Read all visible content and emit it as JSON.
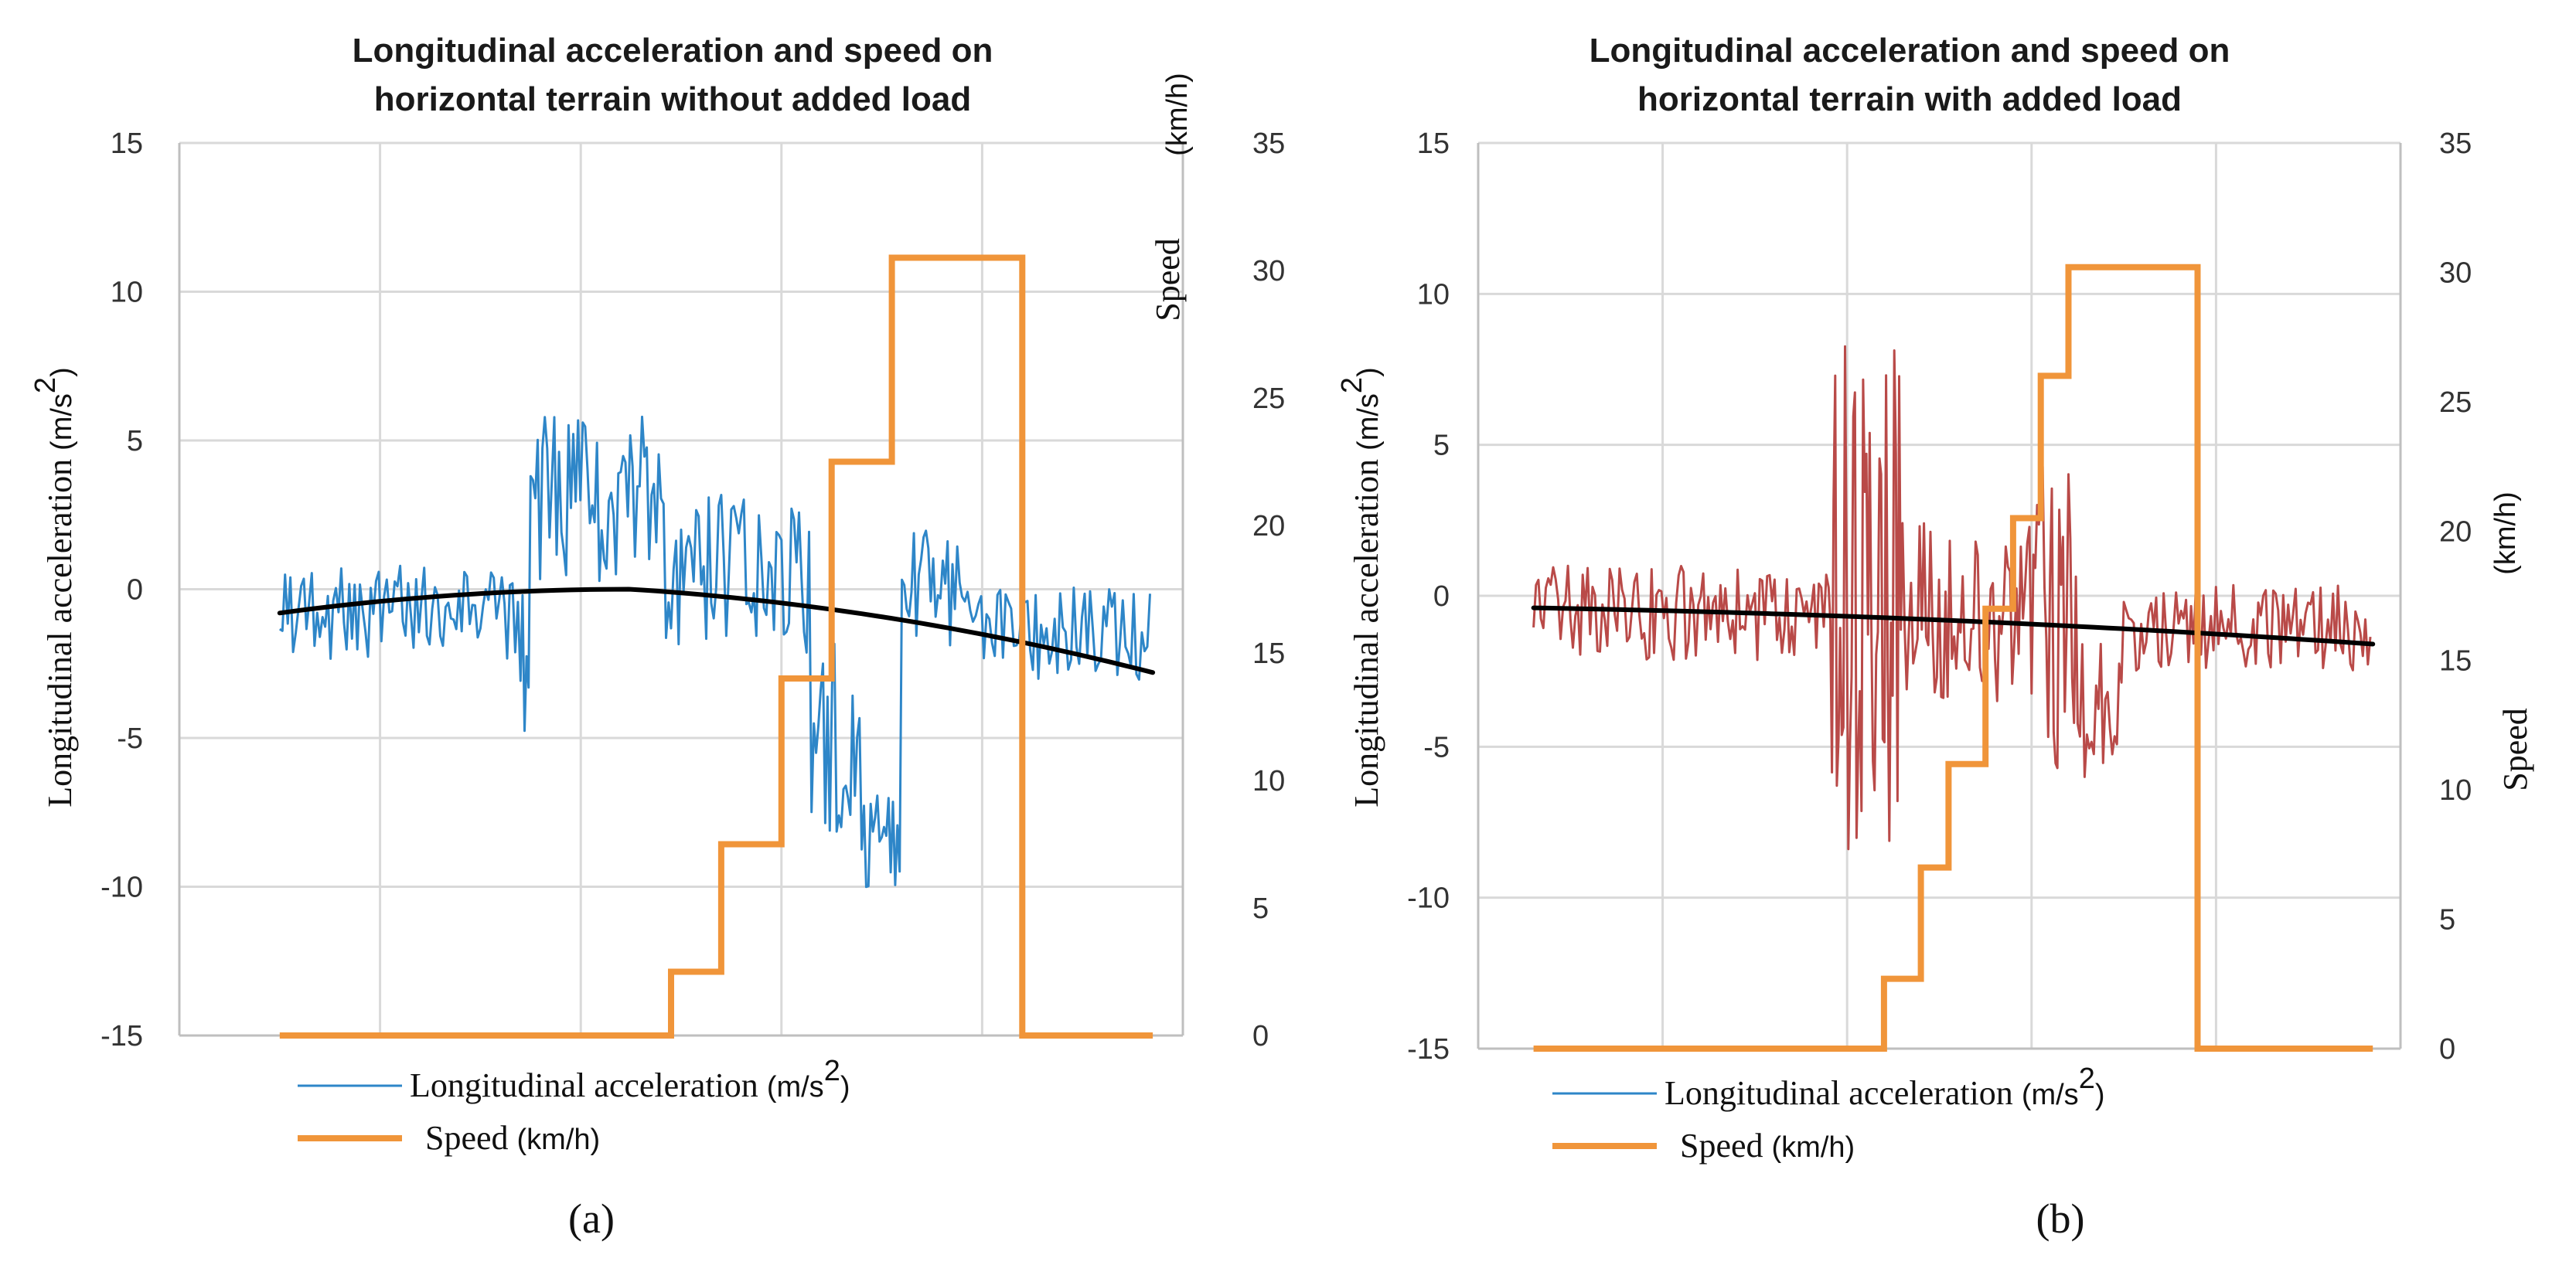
{
  "colors": {
    "accel_a": "#2e86c8",
    "accel_b": "#b94a48",
    "legend_accel": "#2e86c8",
    "speed": "#f0953a",
    "trend": "#000000",
    "grid": "#d9d9d9",
    "axis": "#bfbfbf"
  },
  "chart_data": [
    {
      "type": "line",
      "panel": "(a)",
      "title_line1": "Longitudinal acceleration and speed on",
      "title_line2": "horizontal terrain without added load",
      "ylabel_left": "Longitudinal acceleration",
      "ylabel_left_unit": "(m/s",
      "ylabel_left_sup": "2",
      "ylabel_left_close": ")",
      "ylabel_right": "Speed",
      "ylabel_right_unit": "(km/h)",
      "ylim_left": [
        -15,
        15
      ],
      "ylim_right": [
        0,
        35
      ],
      "yticks_left": [
        "15",
        "10",
        "5",
        "0",
        "-5",
        "-10",
        "-15"
      ],
      "yticks_right": [
        "35",
        "30",
        "25",
        "20",
        "15",
        "10",
        "5",
        "0"
      ],
      "xlim": [
        0,
        100
      ],
      "x_gridlines": 5,
      "legend": {
        "accel_label": "Longitudinal acceleration",
        "accel_unit": "(m/s",
        "accel_sup": "2",
        "accel_close": ")",
        "speed_label": "Speed",
        "speed_unit": "(km/h)"
      },
      "speed_steps": [
        [
          10,
          0
        ],
        [
          49,
          0
        ],
        [
          49,
          2.5
        ],
        [
          54,
          2.5
        ],
        [
          54,
          7.5
        ],
        [
          60,
          7.5
        ],
        [
          60,
          14
        ],
        [
          65,
          14
        ],
        [
          65,
          22.5
        ],
        [
          71,
          22.5
        ],
        [
          71,
          30.5
        ],
        [
          84,
          30.5
        ],
        [
          84,
          0
        ],
        [
          97,
          0
        ]
      ],
      "trend": {
        "x0": 10,
        "x1": 97,
        "y0": -0.8,
        "peak_x": 45,
        "peak_y": 0,
        "y1": -2.8
      },
      "accel_segments": [
        {
          "x0": 10,
          "x1": 34,
          "center": -0.8,
          "amp": 1.6,
          "seed": 3,
          "n": 90
        },
        {
          "x0": 34,
          "x1": 35,
          "center": -3.0,
          "amp": 3.0,
          "seed": 5,
          "n": 5
        },
        {
          "x0": 35,
          "x1": 48,
          "center": 3.0,
          "amp": 2.8,
          "seed": 7,
          "n": 55
        },
        {
          "x0": 48,
          "x1": 63,
          "center": 0.5,
          "amp": 2.8,
          "seed": 11,
          "n": 60
        },
        {
          "x0": 63,
          "x1": 68,
          "center": -5.0,
          "amp": 3.2,
          "seed": 13,
          "n": 22
        },
        {
          "x0": 68,
          "x1": 72,
          "center": -8.5,
          "amp": 1.6,
          "seed": 17,
          "n": 18
        },
        {
          "x0": 72,
          "x1": 78,
          "center": 0.0,
          "amp": 2.0,
          "seed": 19,
          "n": 25
        },
        {
          "x0": 78,
          "x1": 97,
          "center": -1.5,
          "amp": 1.6,
          "seed": 23,
          "n": 70
        }
      ]
    },
    {
      "type": "line",
      "panel": "(b)",
      "title_line1": "Longitudinal acceleration and speed on",
      "title_line2": "horizontal terrain with added load",
      "ylabel_left": "Longitudinal acceleration",
      "ylabel_left_unit": "(m/s",
      "ylabel_left_sup": "2",
      "ylabel_left_close": ")",
      "ylabel_right": "Speed",
      "ylabel_right_unit": "(km/h)",
      "ylim_left": [
        -15,
        15
      ],
      "ylim_right": [
        0,
        35
      ],
      "yticks_left": [
        "15",
        "10",
        "5",
        "0",
        "-5",
        "-10",
        "-15"
      ],
      "yticks_right": [
        "35",
        "30",
        "25",
        "20",
        "15",
        "10",
        "5",
        "0"
      ],
      "xlim": [
        0,
        100
      ],
      "x_gridlines": 5,
      "legend": {
        "accel_label": "Longitudinal acceleration",
        "accel_unit": "(m/s",
        "accel_sup": "2",
        "accel_close": ")",
        "speed_label": "Speed",
        "speed_unit": "(km/h)"
      },
      "speed_steps": [
        [
          6,
          0
        ],
        [
          44,
          0
        ],
        [
          44,
          2.7
        ],
        [
          48,
          2.7
        ],
        [
          48,
          7
        ],
        [
          51,
          7
        ],
        [
          51,
          11
        ],
        [
          55,
          11
        ],
        [
          55,
          17
        ],
        [
          58,
          17
        ],
        [
          58,
          20.5
        ],
        [
          61,
          20.5
        ],
        [
          61,
          26
        ],
        [
          64,
          26
        ],
        [
          64,
          30.2
        ],
        [
          78,
          30.2
        ],
        [
          78,
          0
        ],
        [
          97,
          0
        ]
      ],
      "trend": {
        "x0": 6,
        "x1": 97,
        "y0": -0.4,
        "peak_x": 6,
        "peak_y": -0.4,
        "y1": -1.6
      },
      "accel_segments": [
        {
          "x0": 6,
          "x1": 38,
          "center": -0.6,
          "amp": 1.6,
          "seed": 29,
          "n": 120
        },
        {
          "x0": 38,
          "x1": 46,
          "center": 0.0,
          "amp": 8.5,
          "seed": 31,
          "n": 45
        },
        {
          "x0": 46,
          "x1": 60,
          "center": -0.5,
          "amp": 3.0,
          "seed": 37,
          "n": 60
        },
        {
          "x0": 60,
          "x1": 65,
          "center": -1.0,
          "amp": 5.5,
          "seed": 41,
          "n": 25
        },
        {
          "x0": 65,
          "x1": 70,
          "center": -4.0,
          "amp": 2.5,
          "seed": 43,
          "n": 20
        },
        {
          "x0": 70,
          "x1": 97,
          "center": -1.0,
          "amp": 1.5,
          "seed": 47,
          "n": 100
        }
      ]
    }
  ]
}
